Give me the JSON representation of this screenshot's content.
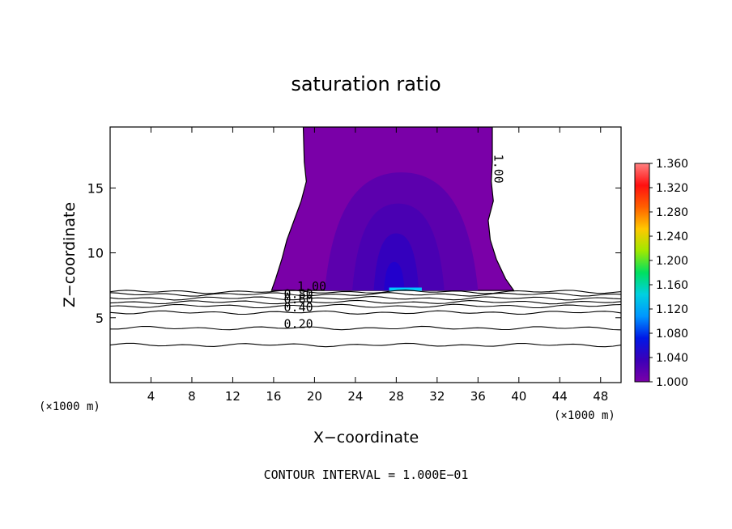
{
  "chart_data": {
    "type": "contour",
    "title": "saturation ratio",
    "xlabel": "X−coordinate",
    "ylabel": "Z−coordinate",
    "x_unit_left": "(×1000 m)",
    "x_unit_right": "(×1000 m)",
    "xlim": [
      0,
      50
    ],
    "ylim": [
      0,
      19.7
    ],
    "x_ticks": [
      4,
      8,
      12,
      16,
      20,
      24,
      28,
      32,
      36,
      40,
      44,
      48
    ],
    "y_ticks": [
      5,
      10,
      15
    ],
    "footer": "CONTOUR INTERVAL = 1.000E−01",
    "colorbar": {
      "ticks": [
        "1.000",
        "1.040",
        "1.080",
        "1.120",
        "1.160",
        "1.200",
        "1.240",
        "1.280",
        "1.320",
        "1.360"
      ],
      "min": 1.0,
      "max": 1.36,
      "colors": [
        "#7a00a8",
        "#3b00b8",
        "#0018e6",
        "#0096ff",
        "#00d0e0",
        "#00e060",
        "#a0e800",
        "#ffc800",
        "#ff6000",
        "#ff1010",
        "#ff8080"
      ]
    },
    "contour_labels": [
      {
        "text": "1.00",
        "x": 37.6,
        "z": 17.6,
        "rotation": 90
      },
      {
        "text": "1.00",
        "x": 18.3,
        "z": 7.1,
        "rotation": 0
      },
      {
        "text": "0.80",
        "x": 17.0,
        "z": 6.5,
        "rotation": 0
      },
      {
        "text": "0.60",
        "x": 17.0,
        "z": 6.1,
        "rotation": 0
      },
      {
        "text": "0.40",
        "x": 17.0,
        "z": 5.5,
        "rotation": 0
      },
      {
        "text": "0.20",
        "x": 17.0,
        "z": 4.2,
        "rotation": 0
      }
    ],
    "contour_lines_z": [
      7.0,
      6.8,
      6.5,
      6.2,
      5.9,
      5.4,
      4.2,
      2.9
    ],
    "supersaturated_region": {
      "z_base": 7.1,
      "z_top": 19.7,
      "x_left_profile": [
        [
          7.1,
          15.8
        ],
        [
          8.0,
          16.2
        ],
        [
          9.5,
          16.8
        ],
        [
          11.0,
          17.3
        ],
        [
          12.5,
          18.0
        ],
        [
          14.0,
          18.7
        ],
        [
          15.5,
          19.2
        ],
        [
          17.0,
          19.0
        ],
        [
          19.7,
          18.9
        ]
      ],
      "x_right_profile": [
        [
          7.1,
          39.5
        ],
        [
          8.0,
          38.7
        ],
        [
          9.5,
          37.8
        ],
        [
          11.0,
          37.2
        ],
        [
          12.5,
          37.0
        ],
        [
          14.0,
          37.5
        ],
        [
          15.5,
          37.3
        ],
        [
          17.0,
          37.4
        ],
        [
          19.7,
          37.4
        ]
      ],
      "inner_levels": [
        {
          "value": 1.01,
          "color": "#5c00ad",
          "cx": 28.5,
          "z_top": 16.2,
          "half_width": 7.5
        },
        {
          "value": 1.02,
          "color": "#4a00b2",
          "cx": 28.2,
          "z_top": 13.8,
          "half_width": 4.5
        },
        {
          "value": 1.03,
          "color": "#3400bd",
          "cx": 28.0,
          "z_top": 11.5,
          "half_width": 2.2
        },
        {
          "value": 1.04,
          "color": "#2200cc",
          "cx": 27.8,
          "z_top": 9.3,
          "half_width": 1.0
        }
      ],
      "max_spot": {
        "value": 1.12,
        "x_start": 27.3,
        "x_end": 30.5,
        "z": 7.2
      }
    }
  }
}
